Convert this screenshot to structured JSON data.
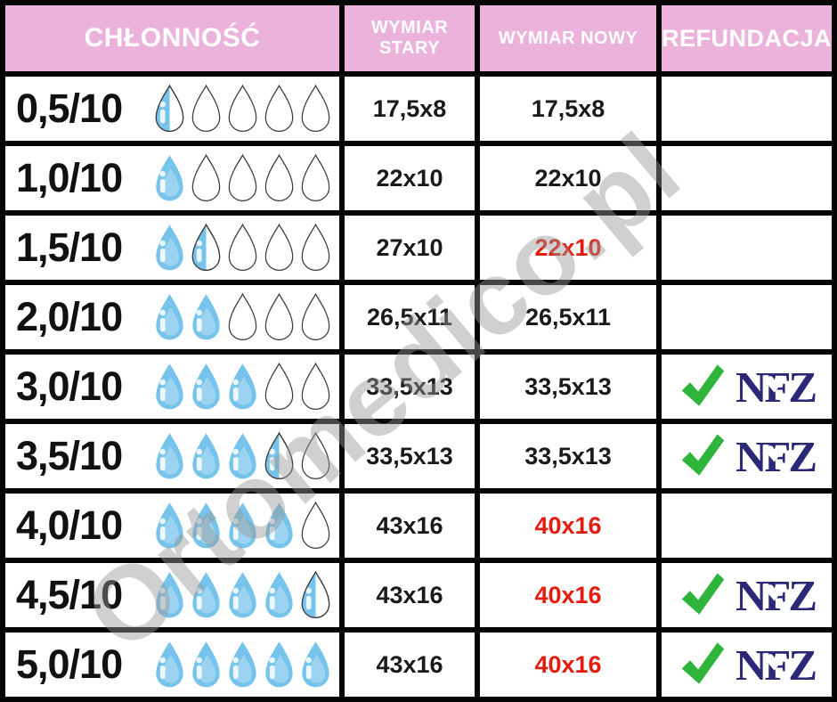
{
  "header": {
    "columns": [
      {
        "label": "CHŁONNOŚĆ"
      },
      {
        "label": "WYMIAR STARY"
      },
      {
        "label": "WYMIAR NOWY"
      },
      {
        "label": "REFUNDACJA"
      }
    ]
  },
  "rows": [
    {
      "absorbency": "0,5/10",
      "drops": [
        "half",
        "empty",
        "empty",
        "empty",
        "empty"
      ],
      "old_size": "17,5x8",
      "new_size": "17,5x8",
      "new_size_changed": false,
      "refunded": false
    },
    {
      "absorbency": "1,0/10",
      "drops": [
        "full",
        "empty",
        "empty",
        "empty",
        "empty"
      ],
      "old_size": "22x10",
      "new_size": "22x10",
      "new_size_changed": false,
      "refunded": false
    },
    {
      "absorbency": "1,5/10",
      "drops": [
        "full",
        "half",
        "empty",
        "empty",
        "empty"
      ],
      "old_size": "27x10",
      "new_size": "22x10",
      "new_size_changed": true,
      "refunded": false
    },
    {
      "absorbency": "2,0/10",
      "drops": [
        "full",
        "full",
        "empty",
        "empty",
        "empty"
      ],
      "old_size": "26,5x11",
      "new_size": "26,5x11",
      "new_size_changed": false,
      "refunded": false
    },
    {
      "absorbency": "3,0/10",
      "drops": [
        "full",
        "full",
        "full",
        "empty",
        "empty"
      ],
      "old_size": "33,5x13",
      "new_size": "33,5x13",
      "new_size_changed": false,
      "refunded": true
    },
    {
      "absorbency": "3,5/10",
      "drops": [
        "full",
        "full",
        "full",
        "half",
        "empty"
      ],
      "old_size": "33,5x13",
      "new_size": "33,5x13",
      "new_size_changed": false,
      "refunded": true
    },
    {
      "absorbency": "4,0/10",
      "drops": [
        "full",
        "full",
        "full",
        "full",
        "empty"
      ],
      "old_size": "43x16",
      "new_size": "40x16",
      "new_size_changed": true,
      "refunded": false
    },
    {
      "absorbency": "4,5/10",
      "drops": [
        "full",
        "full",
        "full",
        "full",
        "half"
      ],
      "old_size": "43x16",
      "new_size": "40x16",
      "new_size_changed": true,
      "refunded": true
    },
    {
      "absorbency": "5,0/10",
      "drops": [
        "full",
        "full",
        "full",
        "full",
        "full"
      ],
      "old_size": "43x16",
      "new_size": "40x16",
      "new_size_changed": true,
      "refunded": true
    }
  ],
  "refund_logo": {
    "checkmark_icon": "check-icon",
    "label": "NFZ",
    "heart_icon": "heart-icon"
  },
  "watermark": "Ortomedico.pl",
  "colors": {
    "header_bg": "#EBB3DC",
    "header_text": "#FFFFFF",
    "border": "#050505",
    "drop_fill": "#76C4EB",
    "drop_highlight": "#9BD3F1",
    "drop_outline": "#3A3A3A",
    "changed_size_red": "#E41B0F",
    "check_green": "#2FB53C",
    "nfz_navy": "#2B2878",
    "watermark_gray": "#969696"
  }
}
